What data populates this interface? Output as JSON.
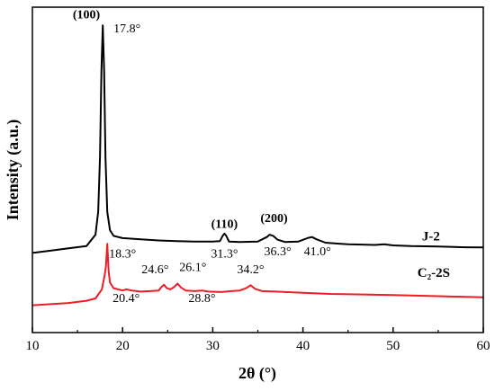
{
  "chart_data": {
    "type": "line",
    "title": "",
    "xlabel": "2θ (°)",
    "ylabel": "Intensity (a.u.)",
    "xlim": [
      10,
      60
    ],
    "xticks": [
      10,
      20,
      30,
      40,
      50,
      60
    ],
    "yticks_shown": false,
    "grid": false,
    "series": [
      {
        "name": "J-2",
        "color": "#000000",
        "x": [
          10,
          12,
          14,
          16,
          17,
          17.3,
          17.5,
          17.65,
          17.8,
          17.95,
          18.1,
          18.3,
          18.6,
          19,
          20,
          22,
          24,
          26,
          28,
          30,
          30.8,
          31.1,
          31.3,
          31.5,
          31.8,
          33,
          35,
          36,
          36.3,
          36.7,
          37.2,
          38,
          39.5,
          40.5,
          41.0,
          41.5,
          42.5,
          45,
          48,
          49,
          50,
          52,
          55,
          58,
          60
        ],
        "y": [
          0.0,
          0.01,
          0.02,
          0.03,
          0.08,
          0.18,
          0.42,
          0.8,
          1.0,
          0.8,
          0.42,
          0.18,
          0.1,
          0.075,
          0.065,
          0.06,
          0.055,
          0.052,
          0.05,
          0.05,
          0.052,
          0.075,
          0.085,
          0.075,
          0.05,
          0.048,
          0.05,
          0.07,
          0.08,
          0.075,
          0.058,
          0.048,
          0.05,
          0.065,
          0.07,
          0.06,
          0.045,
          0.038,
          0.035,
          0.038,
          0.033,
          0.03,
          0.028,
          0.025,
          0.024
        ]
      },
      {
        "name": "C₂-2S",
        "color": "#ee1c25",
        "x": [
          10,
          12,
          14,
          16,
          17,
          17.7,
          18.0,
          18.15,
          18.3,
          18.45,
          18.6,
          19,
          20,
          20.4,
          21,
          22,
          23,
          24,
          24.3,
          24.6,
          24.9,
          25.3,
          25.7,
          26.1,
          26.5,
          27,
          28,
          28.8,
          29.5,
          31,
          32,
          33,
          33.7,
          34.2,
          34.7,
          35.5,
          37,
          40,
          43,
          46,
          50,
          55,
          60
        ],
        "y": [
          -0.23,
          -0.225,
          -0.22,
          -0.21,
          -0.2,
          -0.16,
          -0.1,
          -0.06,
          0.04,
          -0.08,
          -0.13,
          -0.155,
          -0.165,
          -0.16,
          -0.165,
          -0.17,
          -0.168,
          -0.165,
          -0.15,
          -0.14,
          -0.155,
          -0.16,
          -0.15,
          -0.135,
          -0.152,
          -0.165,
          -0.168,
          -0.165,
          -0.17,
          -0.172,
          -0.168,
          -0.165,
          -0.155,
          -0.142,
          -0.158,
          -0.168,
          -0.17,
          -0.175,
          -0.18,
          -0.182,
          -0.185,
          -0.19,
          -0.195
        ]
      }
    ],
    "ylim": [
      -0.35,
      1.08
    ],
    "annotations": [
      {
        "text": "(100)",
        "x": 17.8,
        "y": 1.03,
        "bold": true,
        "anchor": "end",
        "dx": -3
      },
      {
        "text": "17.8°",
        "x": 19.0,
        "y": 0.97,
        "bold": false,
        "anchor": "start",
        "dx": 0
      },
      {
        "text": "18.3°",
        "x": 18.5,
        "y": -0.02,
        "bold": false,
        "anchor": "start",
        "dx": 0
      },
      {
        "text": "(110)",
        "x": 31.3,
        "y": 0.11,
        "bold": true,
        "anchor": "middle",
        "dx": 0
      },
      {
        "text": "31.3°",
        "x": 31.3,
        "y": -0.02,
        "bold": false,
        "anchor": "middle",
        "dx": 0
      },
      {
        "text": "(200)",
        "x": 36.8,
        "y": 0.135,
        "bold": true,
        "anchor": "middle",
        "dx": 0
      },
      {
        "text": "36.3°",
        "x": 37.2,
        "y": -0.01,
        "bold": false,
        "anchor": "middle",
        "dx": 0
      },
      {
        "text": "41.0°",
        "x": 41.6,
        "y": -0.01,
        "bold": false,
        "anchor": "middle",
        "dx": 0
      },
      {
        "text": "24.6°",
        "x": 23.6,
        "y": -0.09,
        "bold": false,
        "anchor": "middle",
        "dx": 0
      },
      {
        "text": "26.1°",
        "x": 27.8,
        "y": -0.08,
        "bold": false,
        "anchor": "middle",
        "dx": 0
      },
      {
        "text": "34.2°",
        "x": 34.2,
        "y": -0.09,
        "bold": false,
        "anchor": "middle",
        "dx": 0
      },
      {
        "text": "20.4°",
        "x": 20.4,
        "y": -0.215,
        "bold": false,
        "anchor": "middle",
        "dx": 0
      },
      {
        "text": "28.8°",
        "x": 28.8,
        "y": -0.215,
        "bold": false,
        "anchor": "middle",
        "dx": 0
      }
    ],
    "series_labels": [
      {
        "text": "J-2",
        "x": 54.2,
        "y": 0.055
      },
      {
        "text": "C₂-2S",
        "x": 54.5,
        "y": -0.105
      }
    ]
  }
}
